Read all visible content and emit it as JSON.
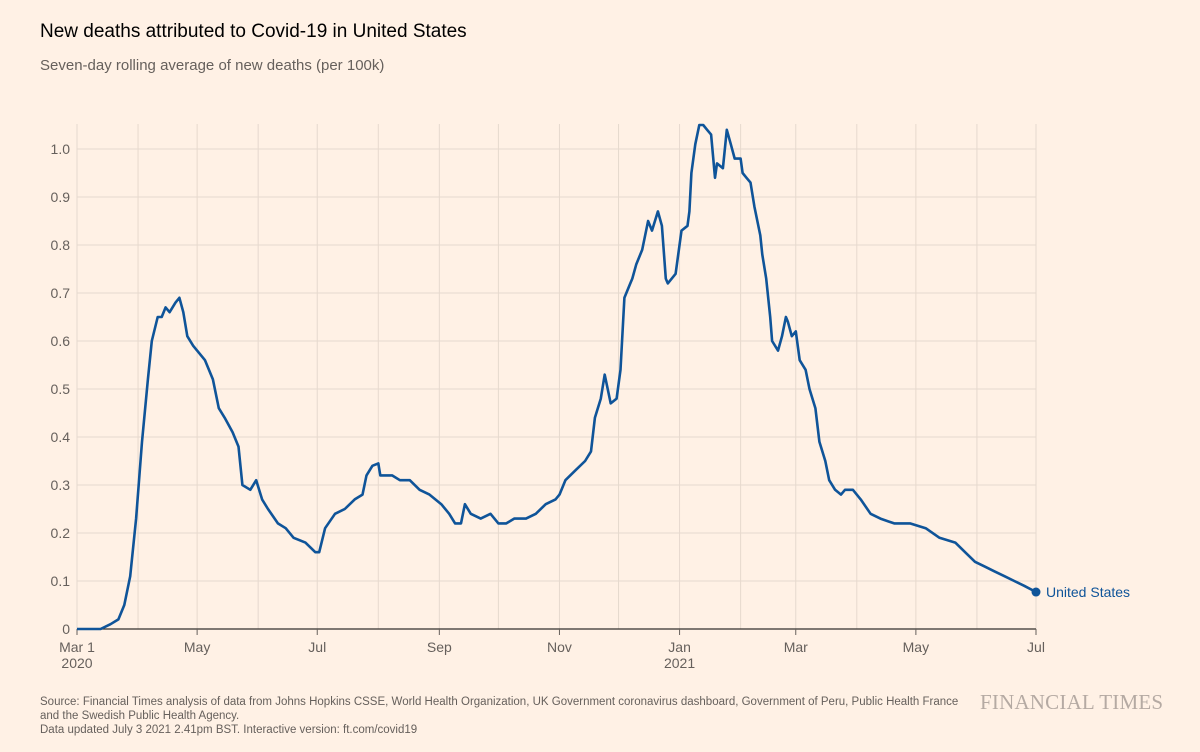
{
  "header": {
    "title": "New deaths attributed to Covid-19 in United States",
    "subtitle": "Seven-day rolling average of new deaths (per 100k)"
  },
  "footer": {
    "source": "Source: Financial Times analysis of data from Johns Hopkins CSSE, World Health Organization, UK Government coronavirus dashboard, Government of Peru, Public Health France and the Swedish Public Health Agency.",
    "updated": "Data updated July 3 2021 2.41pm BST. Interactive version: ft.com/covid19",
    "logo": "FINANCIAL TIMES"
  },
  "chart_data": {
    "type": "line",
    "title": "New deaths attributed to Covid-19 in United States",
    "subtitle": "Seven-day rolling average of new deaths (per 100k)",
    "xlim": [
      "2020-03-01",
      "2021-07-01"
    ],
    "ylim": [
      0,
      1.05
    ],
    "grid": true,
    "y_ticks": [
      "0",
      "0.1",
      "0.2",
      "0.3",
      "0.4",
      "0.5",
      "0.6",
      "0.7",
      "0.8",
      "0.9",
      "1.0"
    ],
    "x_ticks": [
      {
        "date": "2020-03-01",
        "label": "Mar 1",
        "sub": "2020"
      },
      {
        "date": "2020-05-01",
        "label": "May",
        "sub": ""
      },
      {
        "date": "2020-07-01",
        "label": "Jul",
        "sub": ""
      },
      {
        "date": "2020-09-01",
        "label": "Sep",
        "sub": ""
      },
      {
        "date": "2020-11-01",
        "label": "Nov",
        "sub": ""
      },
      {
        "date": "2021-01-01",
        "label": "Jan",
        "sub": "2021"
      },
      {
        "date": "2021-03-01",
        "label": "Mar",
        "sub": ""
      },
      {
        "date": "2021-05-01",
        "label": "May",
        "sub": ""
      },
      {
        "date": "2021-07-01",
        "label": "Jul",
        "sub": ""
      }
    ],
    "series": [
      {
        "name": "United States",
        "color": "#0f5499",
        "points": [
          [
            "2020-03-01",
            0.0
          ],
          [
            "2020-03-13",
            0.0
          ],
          [
            "2020-03-18",
            0.01
          ],
          [
            "2020-03-22",
            0.02
          ],
          [
            "2020-03-25",
            0.05
          ],
          [
            "2020-03-28",
            0.11
          ],
          [
            "2020-03-31",
            0.23
          ],
          [
            "2020-04-03",
            0.39
          ],
          [
            "2020-04-06",
            0.52
          ],
          [
            "2020-04-08",
            0.6
          ],
          [
            "2020-04-11",
            0.65
          ],
          [
            "2020-04-13",
            0.65
          ],
          [
            "2020-04-15",
            0.67
          ],
          [
            "2020-04-17",
            0.66
          ],
          [
            "2020-04-20",
            0.68
          ],
          [
            "2020-04-22",
            0.69
          ],
          [
            "2020-04-24",
            0.66
          ],
          [
            "2020-04-26",
            0.61
          ],
          [
            "2020-04-29",
            0.59
          ],
          [
            "2020-05-01",
            0.58
          ],
          [
            "2020-05-05",
            0.56
          ],
          [
            "2020-05-09",
            0.52
          ],
          [
            "2020-05-12",
            0.46
          ],
          [
            "2020-05-15",
            0.44
          ],
          [
            "2020-05-19",
            0.41
          ],
          [
            "2020-05-22",
            0.38
          ],
          [
            "2020-05-24",
            0.3
          ],
          [
            "2020-05-28",
            0.29
          ],
          [
            "2020-05-31",
            0.31
          ],
          [
            "2020-06-03",
            0.27
          ],
          [
            "2020-06-06",
            0.25
          ],
          [
            "2020-06-11",
            0.22
          ],
          [
            "2020-06-15",
            0.21
          ],
          [
            "2020-06-19",
            0.19
          ],
          [
            "2020-06-25",
            0.18
          ],
          [
            "2020-06-30",
            0.16
          ],
          [
            "2020-07-02",
            0.16
          ],
          [
            "2020-07-05",
            0.21
          ],
          [
            "2020-07-10",
            0.24
          ],
          [
            "2020-07-15",
            0.25
          ],
          [
            "2020-07-20",
            0.27
          ],
          [
            "2020-07-24",
            0.28
          ],
          [
            "2020-07-26",
            0.32
          ],
          [
            "2020-07-29",
            0.34
          ],
          [
            "2020-08-01",
            0.345
          ],
          [
            "2020-08-02",
            0.32
          ],
          [
            "2020-08-08",
            0.32
          ],
          [
            "2020-08-12",
            0.31
          ],
          [
            "2020-08-17",
            0.31
          ],
          [
            "2020-08-22",
            0.29
          ],
          [
            "2020-08-27",
            0.28
          ],
          [
            "2020-09-02",
            0.26
          ],
          [
            "2020-09-06",
            0.24
          ],
          [
            "2020-09-09",
            0.22
          ],
          [
            "2020-09-12",
            0.22
          ],
          [
            "2020-09-14",
            0.26
          ],
          [
            "2020-09-17",
            0.24
          ],
          [
            "2020-09-22",
            0.23
          ],
          [
            "2020-09-27",
            0.24
          ],
          [
            "2020-10-01",
            0.22
          ],
          [
            "2020-10-05",
            0.22
          ],
          [
            "2020-10-09",
            0.23
          ],
          [
            "2020-10-15",
            0.23
          ],
          [
            "2020-10-20",
            0.24
          ],
          [
            "2020-10-25",
            0.26
          ],
          [
            "2020-10-30",
            0.27
          ],
          [
            "2020-11-01",
            0.28
          ],
          [
            "2020-11-04",
            0.31
          ],
          [
            "2020-11-09",
            0.33
          ],
          [
            "2020-11-14",
            0.35
          ],
          [
            "2020-11-17",
            0.37
          ],
          [
            "2020-11-19",
            0.44
          ],
          [
            "2020-11-22",
            0.48
          ],
          [
            "2020-11-24",
            0.53
          ],
          [
            "2020-11-27",
            0.47
          ],
          [
            "2020-11-30",
            0.48
          ],
          [
            "2020-12-02",
            0.54
          ],
          [
            "2020-12-04",
            0.69
          ],
          [
            "2020-12-07",
            0.72
          ],
          [
            "2020-12-08",
            0.73
          ],
          [
            "2020-12-10",
            0.76
          ],
          [
            "2020-12-13",
            0.79
          ],
          [
            "2020-12-16",
            0.85
          ],
          [
            "2020-12-18",
            0.83
          ],
          [
            "2020-12-21",
            0.87
          ],
          [
            "2020-12-23",
            0.84
          ],
          [
            "2020-12-25",
            0.73
          ],
          [
            "2020-12-26",
            0.72
          ],
          [
            "2020-12-30",
            0.74
          ],
          [
            "2021-01-02",
            0.83
          ],
          [
            "2021-01-05",
            0.84
          ],
          [
            "2021-01-06",
            0.87
          ],
          [
            "2021-01-07",
            0.95
          ],
          [
            "2021-01-09",
            1.01
          ],
          [
            "2021-01-11",
            1.05
          ],
          [
            "2021-01-13",
            1.05
          ],
          [
            "2021-01-15",
            1.04
          ],
          [
            "2021-01-17",
            1.03
          ],
          [
            "2021-01-19",
            0.94
          ],
          [
            "2021-01-20",
            0.97
          ],
          [
            "2021-01-23",
            0.96
          ],
          [
            "2021-01-25",
            1.04
          ],
          [
            "2021-01-27",
            1.01
          ],
          [
            "2021-01-29",
            0.98
          ],
          [
            "2021-02-01",
            0.98
          ],
          [
            "2021-02-02",
            0.95
          ],
          [
            "2021-02-04",
            0.94
          ],
          [
            "2021-02-06",
            0.93
          ],
          [
            "2021-02-08",
            0.88
          ],
          [
            "2021-02-11",
            0.82
          ],
          [
            "2021-02-12",
            0.78
          ],
          [
            "2021-02-14",
            0.73
          ],
          [
            "2021-02-16",
            0.65
          ],
          [
            "2021-02-17",
            0.6
          ],
          [
            "2021-02-20",
            0.58
          ],
          [
            "2021-02-22",
            0.61
          ],
          [
            "2021-02-24",
            0.65
          ],
          [
            "2021-02-25",
            0.64
          ],
          [
            "2021-02-27",
            0.61
          ],
          [
            "2021-03-01",
            0.62
          ],
          [
            "2021-03-03",
            0.56
          ],
          [
            "2021-03-06",
            0.54
          ],
          [
            "2021-03-08",
            0.5
          ],
          [
            "2021-03-11",
            0.46
          ],
          [
            "2021-03-13",
            0.39
          ],
          [
            "2021-03-16",
            0.35
          ],
          [
            "2021-03-18",
            0.31
          ],
          [
            "2021-03-21",
            0.29
          ],
          [
            "2021-03-24",
            0.28
          ],
          [
            "2021-03-26",
            0.29
          ],
          [
            "2021-03-30",
            0.29
          ],
          [
            "2021-04-03",
            0.27
          ],
          [
            "2021-04-08",
            0.24
          ],
          [
            "2021-04-13",
            0.23
          ],
          [
            "2021-04-20",
            0.22
          ],
          [
            "2021-04-28",
            0.22
          ],
          [
            "2021-05-06",
            0.21
          ],
          [
            "2021-05-13",
            0.19
          ],
          [
            "2021-05-21",
            0.18
          ],
          [
            "2021-05-26",
            0.16
          ],
          [
            "2021-05-31",
            0.14
          ],
          [
            "2021-06-05",
            0.13
          ],
          [
            "2021-06-10",
            0.12
          ],
          [
            "2021-06-15",
            0.11
          ],
          [
            "2021-06-20",
            0.1
          ],
          [
            "2021-06-25",
            0.09
          ],
          [
            "2021-07-01",
            0.077
          ]
        ]
      }
    ]
  }
}
